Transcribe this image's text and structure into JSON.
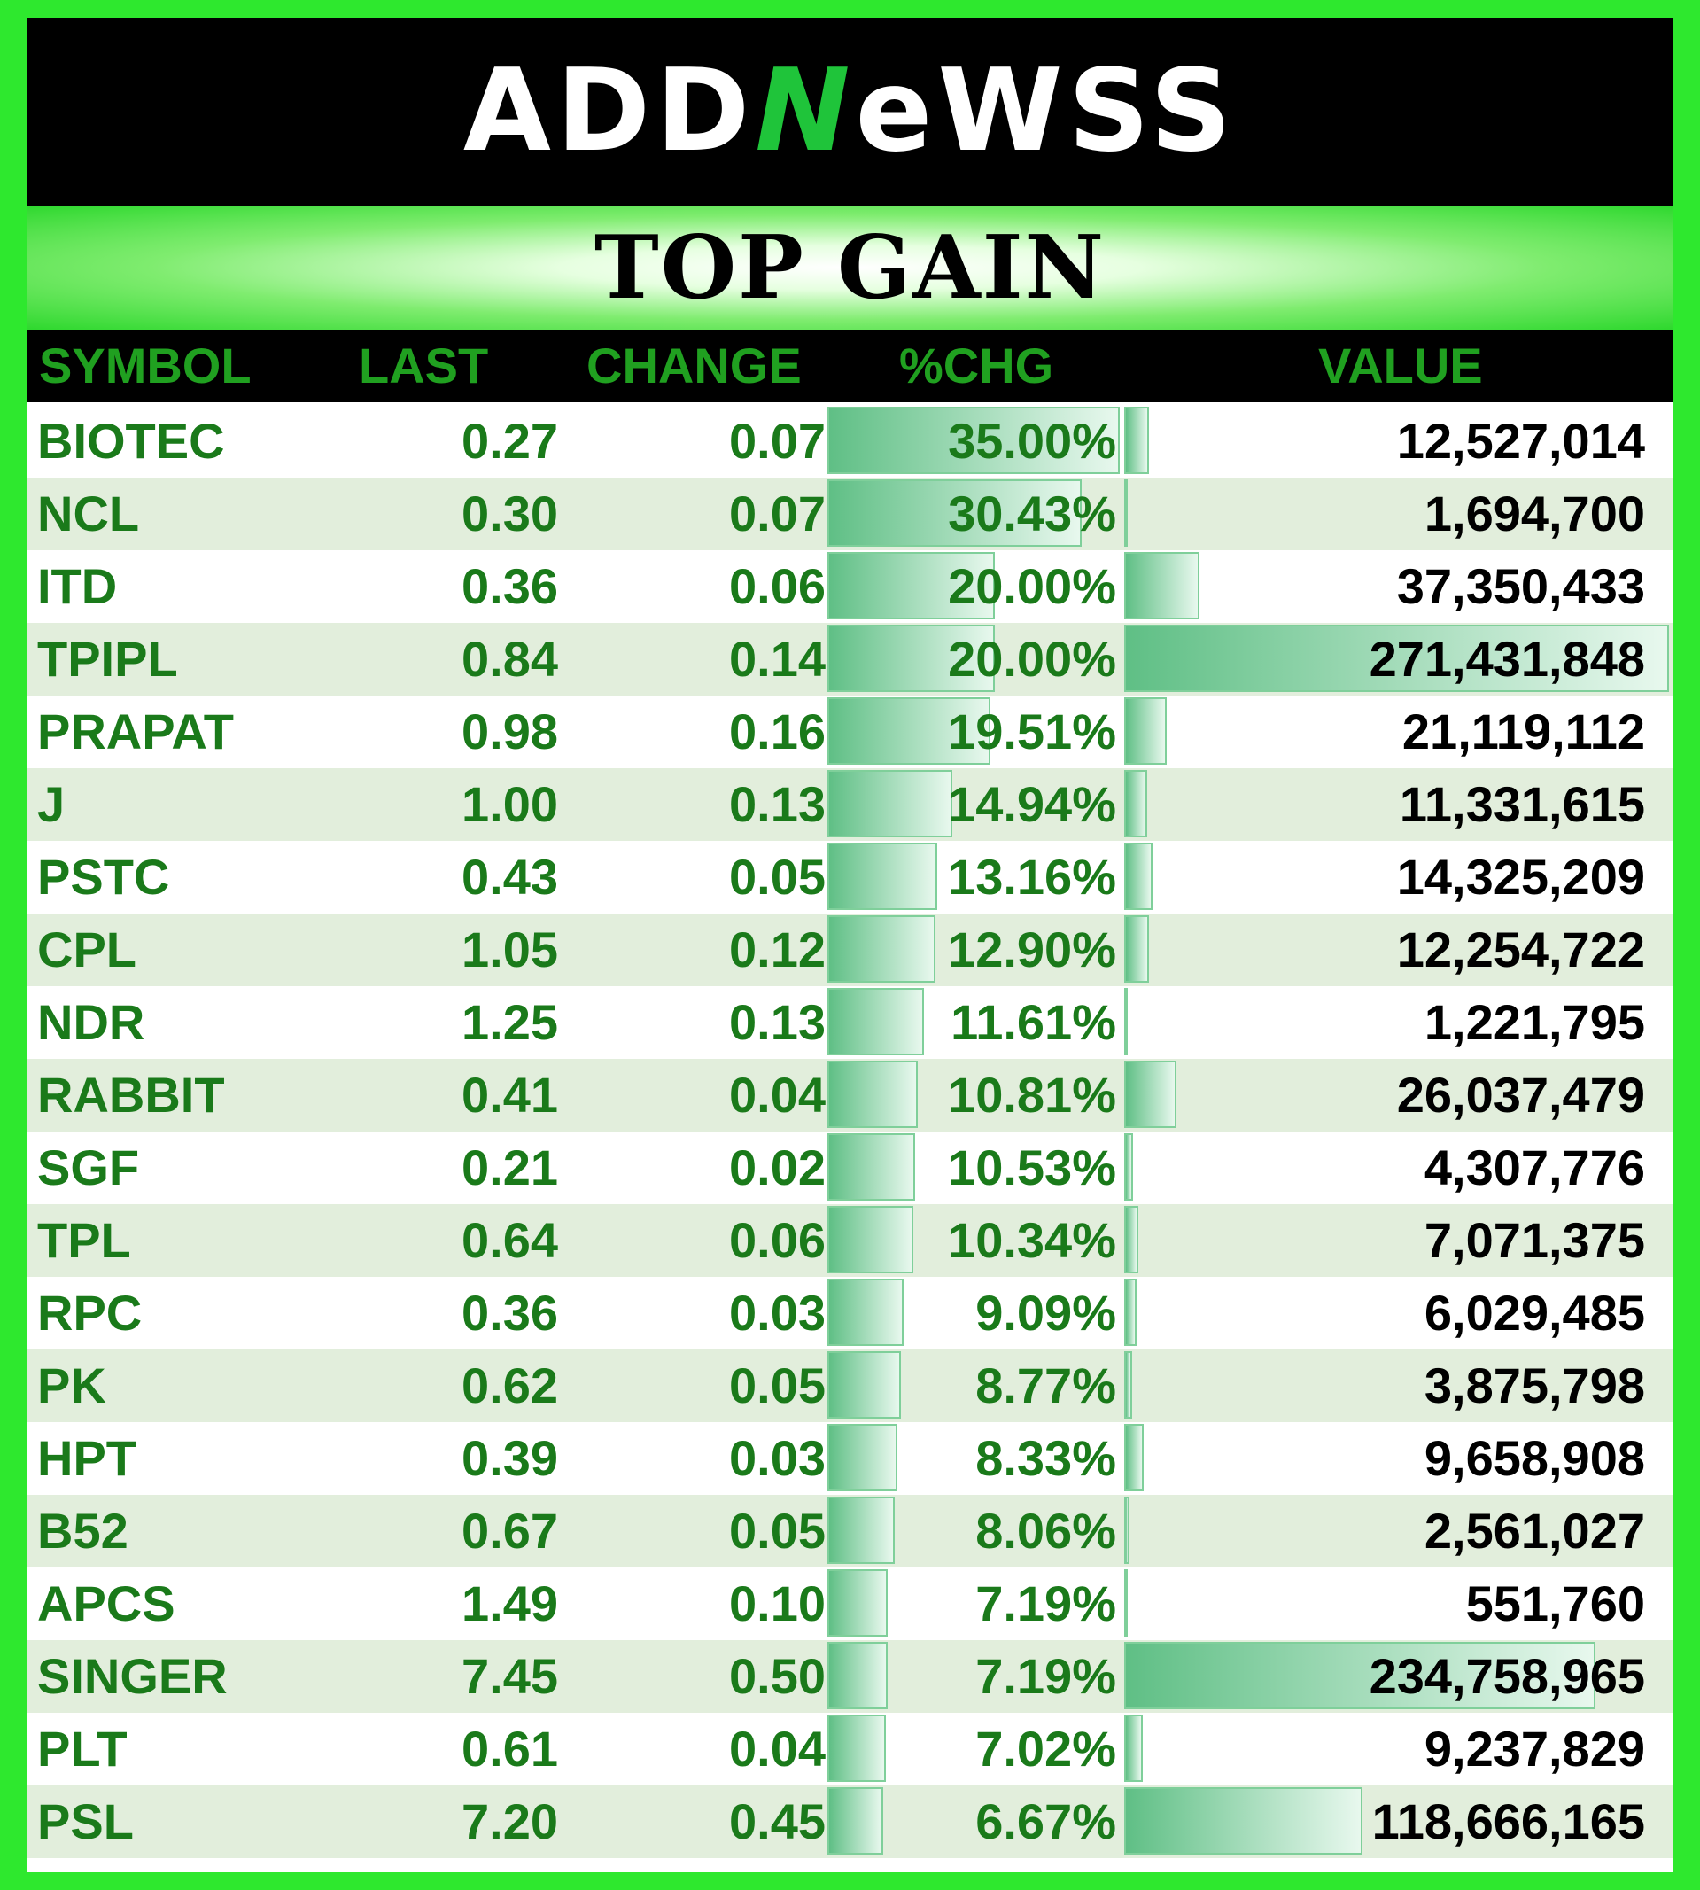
{
  "brand": {
    "logo_text_part1": "ADD",
    "logo_text_n": "N",
    "logo_text_part2": "eWSS"
  },
  "title": "TOP GAIN",
  "columns": {
    "symbol": "SYMBOL",
    "last": "LAST",
    "change": "CHANGE",
    "pct": "%CHG",
    "value": "VALUE"
  },
  "colors": {
    "frame": "#2ee82e",
    "header_bg": "#000000",
    "header_text": "#20a020",
    "row_text": "#1a7a1a",
    "alt_row": "#e2eedc",
    "bar": "#5fbf85"
  },
  "rows": [
    {
      "symbol": "BIOTEC",
      "last": "0.27",
      "change": "0.07",
      "pct": "35.00%",
      "value": "12,527,014"
    },
    {
      "symbol": "NCL",
      "last": "0.30",
      "change": "0.07",
      "pct": "30.43%",
      "value": "1,694,700"
    },
    {
      "symbol": "ITD",
      "last": "0.36",
      "change": "0.06",
      "pct": "20.00%",
      "value": "37,350,433"
    },
    {
      "symbol": "TPIPL",
      "last": "0.84",
      "change": "0.14",
      "pct": "20.00%",
      "value": "271,431,848"
    },
    {
      "symbol": "PRAPAT",
      "last": "0.98",
      "change": "0.16",
      "pct": "19.51%",
      "value": "21,119,112"
    },
    {
      "symbol": "J",
      "last": "1.00",
      "change": "0.13",
      "pct": "14.94%",
      "value": "11,331,615"
    },
    {
      "symbol": "PSTC",
      "last": "0.43",
      "change": "0.05",
      "pct": "13.16%",
      "value": "14,325,209"
    },
    {
      "symbol": "CPL",
      "last": "1.05",
      "change": "0.12",
      "pct": "12.90%",
      "value": "12,254,722"
    },
    {
      "symbol": "NDR",
      "last": "1.25",
      "change": "0.13",
      "pct": "11.61%",
      "value": "1,221,795"
    },
    {
      "symbol": "RABBIT",
      "last": "0.41",
      "change": "0.04",
      "pct": "10.81%",
      "value": "26,037,479"
    },
    {
      "symbol": "SGF",
      "last": "0.21",
      "change": "0.02",
      "pct": "10.53%",
      "value": "4,307,776"
    },
    {
      "symbol": "TPL",
      "last": "0.64",
      "change": "0.06",
      "pct": "10.34%",
      "value": "7,071,375"
    },
    {
      "symbol": "RPC",
      "last": "0.36",
      "change": "0.03",
      "pct": "9.09%",
      "value": "6,029,485"
    },
    {
      "symbol": "PK",
      "last": "0.62",
      "change": "0.05",
      "pct": "8.77%",
      "value": "3,875,798"
    },
    {
      "symbol": "HPT",
      "last": "0.39",
      "change": "0.03",
      "pct": "8.33%",
      "value": "9,658,908"
    },
    {
      "symbol": "B52",
      "last": "0.67",
      "change": "0.05",
      "pct": "8.06%",
      "value": "2,561,027"
    },
    {
      "symbol": "APCS",
      "last": "1.49",
      "change": "0.10",
      "pct": "7.19%",
      "value": "551,760"
    },
    {
      "symbol": "SINGER",
      "last": "7.45",
      "change": "0.50",
      "pct": "7.19%",
      "value": "234,758,965"
    },
    {
      "symbol": "PLT",
      "last": "0.61",
      "change": "0.04",
      "pct": "7.02%",
      "value": "9,237,829"
    },
    {
      "symbol": "PSL",
      "last": "7.20",
      "change": "0.45",
      "pct": "6.67%",
      "value": "118,666,165"
    }
  ]
}
